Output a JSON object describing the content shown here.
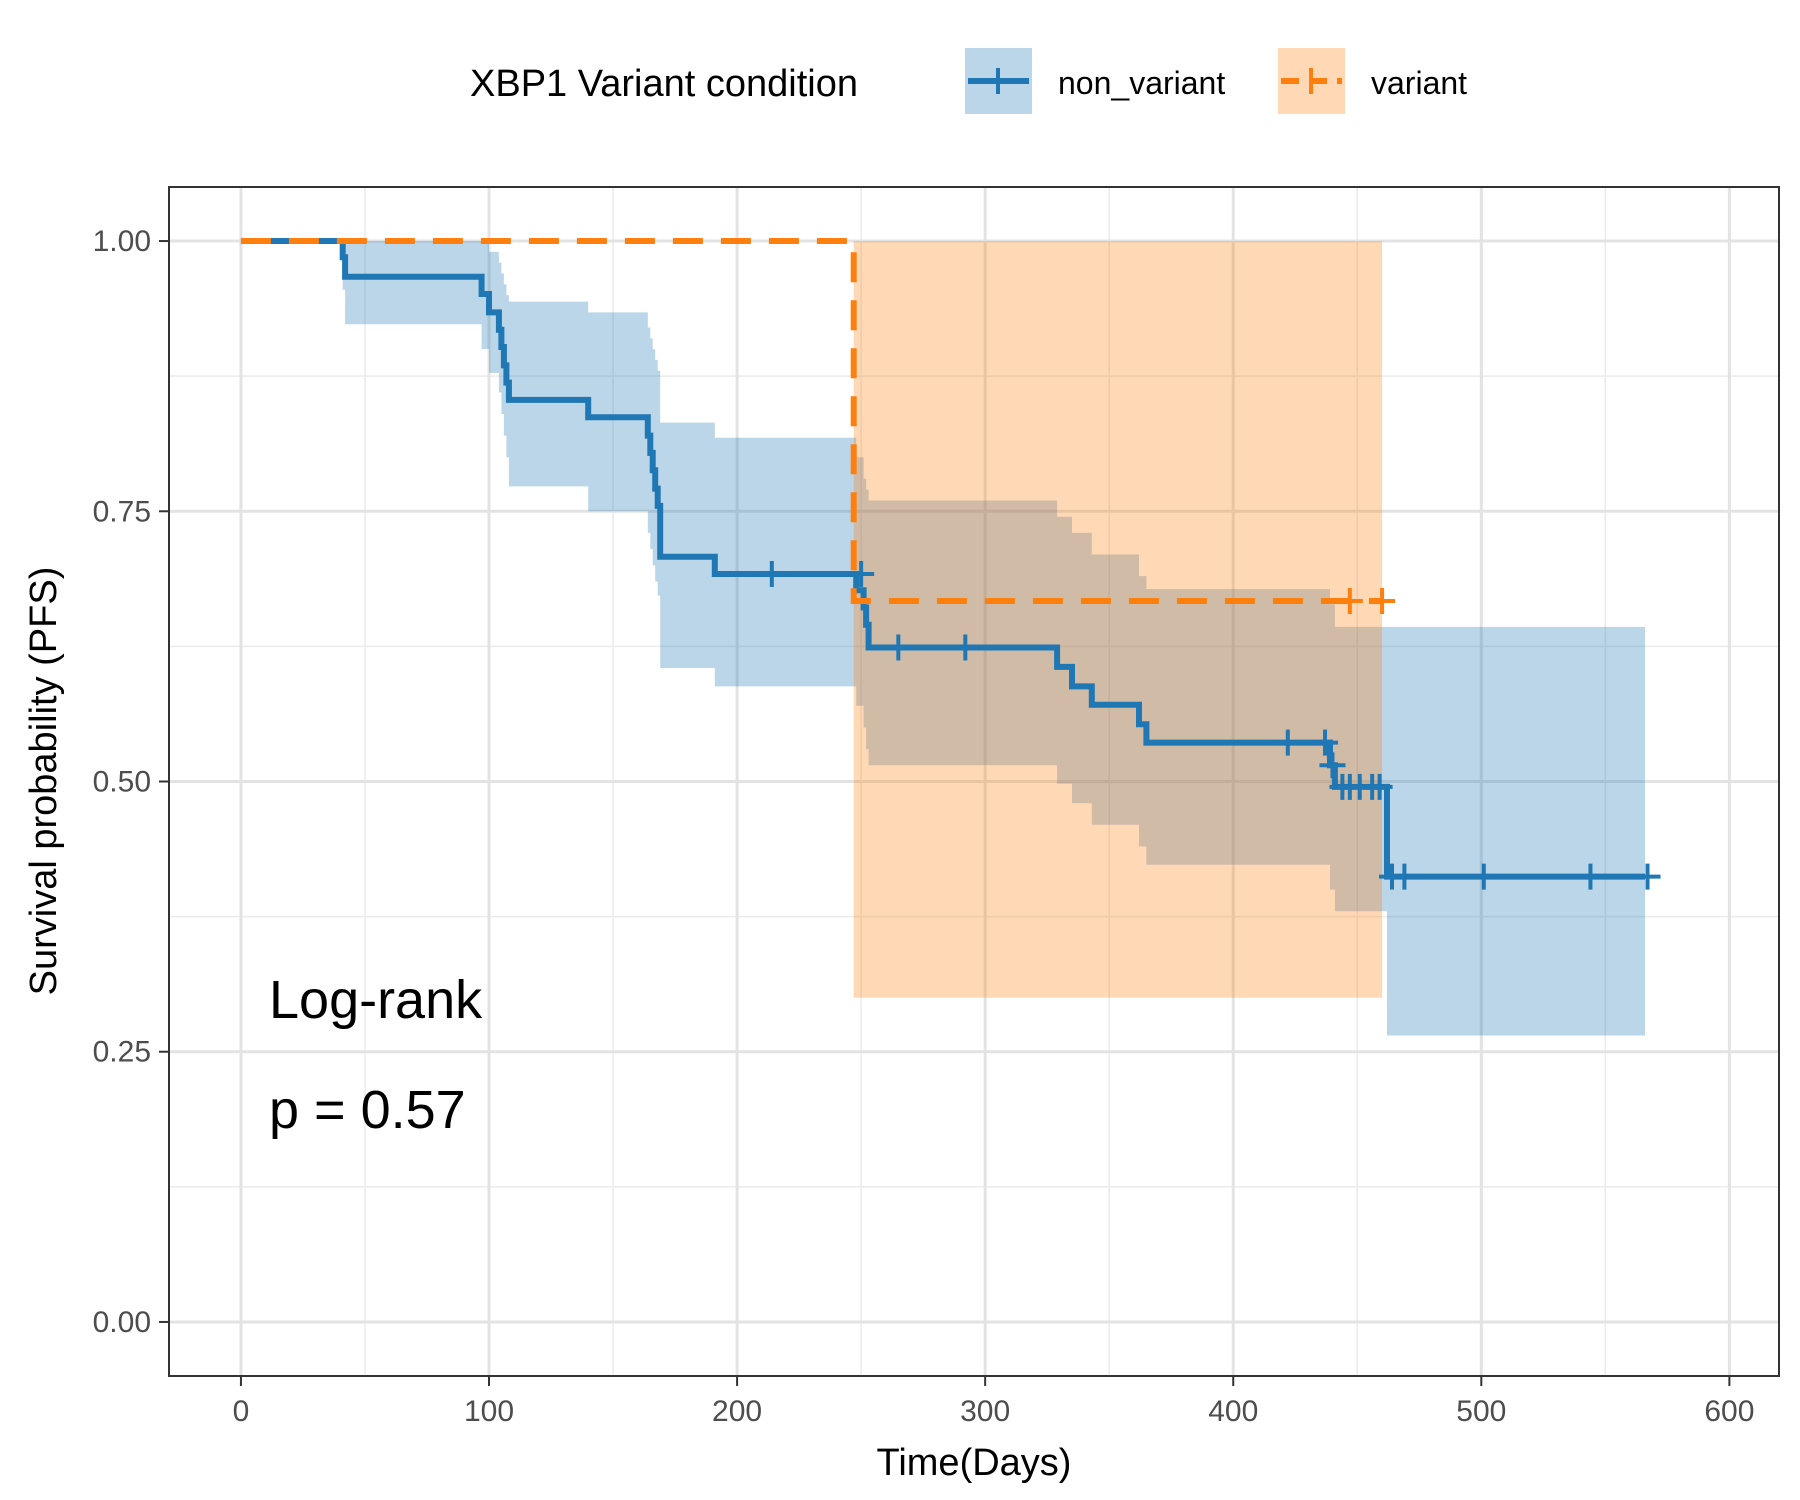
{
  "chart_data": {
    "type": "line",
    "subtype": "kaplan-meier",
    "xlabel": "Time(Days)",
    "ylabel": "Survival probability (PFS)",
    "xlim": [
      -29,
      620
    ],
    "ylim": [
      -0.05,
      1.05
    ],
    "xticks": [
      0,
      100,
      200,
      300,
      400,
      500,
      600
    ],
    "yticks": [
      0.0,
      0.25,
      0.5,
      0.75,
      1.0
    ],
    "xtick_labels": [
      "0",
      "100",
      "200",
      "300",
      "400",
      "500",
      "600"
    ],
    "ytick_labels": [
      "0.00",
      "0.25",
      "0.50",
      "0.75",
      "1.00"
    ],
    "grid": true,
    "legend": {
      "title": "XBP1 Variant condition",
      "position": "top",
      "entries": [
        "non_variant",
        "variant"
      ]
    },
    "annotations": [
      "Log-rank",
      "p = 0.57"
    ],
    "series": [
      {
        "name": "non_variant",
        "color": "#1f77b4",
        "band_color": "#1f77b4",
        "dash": "solid",
        "steps": [
          {
            "x": 0,
            "y": 1.0,
            "lo": 1.0,
            "hi": 1.0
          },
          {
            "x": 41,
            "y": 0.985,
            "lo": 0.955,
            "hi": 1.0
          },
          {
            "x": 42,
            "y": 0.967,
            "lo": 0.923,
            "hi": 1.0
          },
          {
            "x": 97,
            "y": 0.951,
            "lo": 0.9,
            "hi": 1.0
          },
          {
            "x": 100,
            "y": 0.934,
            "lo": 0.878,
            "hi": 0.99
          },
          {
            "x": 104,
            "y": 0.918,
            "lo": 0.86,
            "hi": 0.98
          },
          {
            "x": 105,
            "y": 0.902,
            "lo": 0.84,
            "hi": 0.97
          },
          {
            "x": 106,
            "y": 0.885,
            "lo": 0.82,
            "hi": 0.96
          },
          {
            "x": 107,
            "y": 0.869,
            "lo": 0.8,
            "hi": 0.95
          },
          {
            "x": 108,
            "y": 0.853,
            "lo": 0.773,
            "hi": 0.944
          },
          {
            "x": 140,
            "y": 0.837,
            "lo": 0.75,
            "hi": 0.934
          },
          {
            "x": 164,
            "y": 0.82,
            "lo": 0.73,
            "hi": 0.92
          },
          {
            "x": 165,
            "y": 0.804,
            "lo": 0.715,
            "hi": 0.91
          },
          {
            "x": 166,
            "y": 0.788,
            "lo": 0.7,
            "hi": 0.9
          },
          {
            "x": 167,
            "y": 0.771,
            "lo": 0.685,
            "hi": 0.89
          },
          {
            "x": 168,
            "y": 0.755,
            "lo": 0.672,
            "hi": 0.88
          },
          {
            "x": 169,
            "y": 0.708,
            "lo": 0.605,
            "hi": 0.832
          },
          {
            "x": 191,
            "y": 0.692,
            "lo": 0.588,
            "hi": 0.818
          },
          {
            "x": 248,
            "y": 0.677,
            "lo": 0.57,
            "hi": 0.8
          },
          {
            "x": 251,
            "y": 0.661,
            "lo": 0.55,
            "hi": 0.78
          },
          {
            "x": 252,
            "y": 0.645,
            "lo": 0.53,
            "hi": 0.77
          },
          {
            "x": 253,
            "y": 0.624,
            "lo": 0.515,
            "hi": 0.76
          },
          {
            "x": 329,
            "y": 0.606,
            "lo": 0.498,
            "hi": 0.745
          },
          {
            "x": 335,
            "y": 0.588,
            "lo": 0.48,
            "hi": 0.73
          },
          {
            "x": 343,
            "y": 0.571,
            "lo": 0.46,
            "hi": 0.71
          },
          {
            "x": 362,
            "y": 0.553,
            "lo": 0.44,
            "hi": 0.69
          },
          {
            "x": 365,
            "y": 0.536,
            "lo": 0.423,
            "hi": 0.678
          },
          {
            "x": 439,
            "y": 0.515,
            "lo": 0.4,
            "hi": 0.664
          },
          {
            "x": 441,
            "y": 0.495,
            "lo": 0.38,
            "hi": 0.643
          },
          {
            "x": 462,
            "y": 0.412,
            "lo": 0.265,
            "hi": 0.643
          },
          {
            "x": 566,
            "y": 0.412,
            "lo": 0.265,
            "hi": 0.643
          }
        ],
        "censored": [
          {
            "x": 214,
            "y": 0.692
          },
          {
            "x": 250,
            "y": 0.692
          },
          {
            "x": 265,
            "y": 0.624
          },
          {
            "x": 292,
            "y": 0.624
          },
          {
            "x": 422,
            "y": 0.536
          },
          {
            "x": 437,
            "y": 0.536
          },
          {
            "x": 440,
            "y": 0.515
          },
          {
            "x": 444,
            "y": 0.495
          },
          {
            "x": 447,
            "y": 0.495
          },
          {
            "x": 451,
            "y": 0.495
          },
          {
            "x": 456,
            "y": 0.495
          },
          {
            "x": 459,
            "y": 0.495
          },
          {
            "x": 464,
            "y": 0.412
          },
          {
            "x": 469,
            "y": 0.412
          },
          {
            "x": 501,
            "y": 0.412
          },
          {
            "x": 544,
            "y": 0.412
          },
          {
            "x": 567,
            "y": 0.412
          }
        ]
      },
      {
        "name": "variant",
        "color": "#ff7f0e",
        "band_color": "#ff7f0e",
        "dash": "dashed",
        "steps": [
          {
            "x": 0,
            "y": 1.0,
            "lo": 1.0,
            "hi": 1.0
          },
          {
            "x": 247,
            "y": 0.667,
            "lo": 0.3,
            "hi": 1.0
          },
          {
            "x": 460,
            "y": 0.667,
            "lo": 0.3,
            "hi": 1.0
          }
        ],
        "censored": [
          {
            "x": 447,
            "y": 0.667
          },
          {
            "x": 460,
            "y": 0.667
          }
        ]
      }
    ]
  }
}
